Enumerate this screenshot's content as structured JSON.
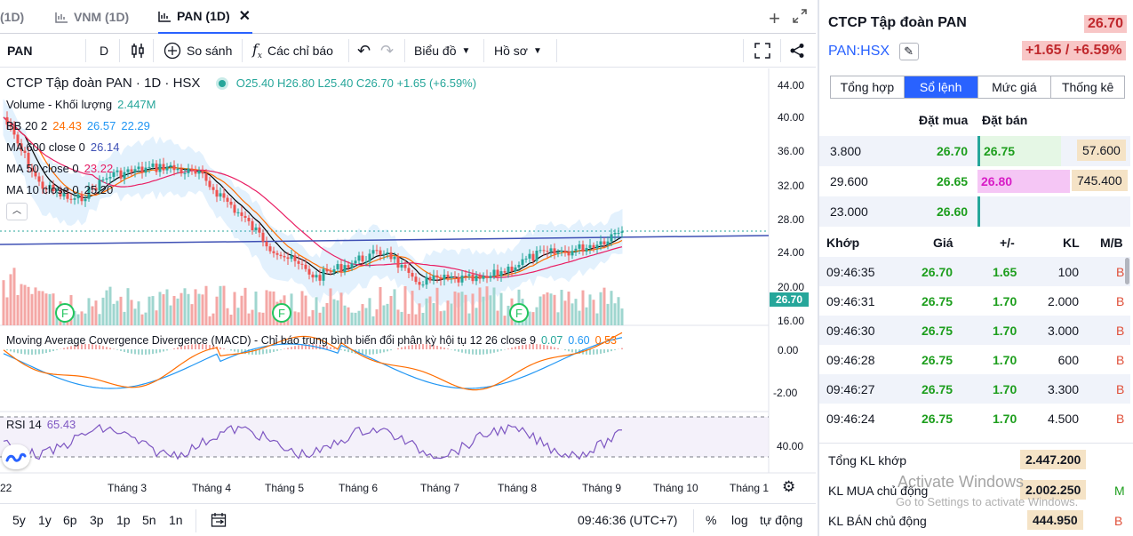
{
  "tabs": [
    {
      "label": "(1D)"
    },
    {
      "label": "VNM (1D)"
    },
    {
      "label": "PAN (1D)"
    }
  ],
  "toolbar": {
    "symbol": "PAN",
    "interval": "D",
    "compare": "So sánh",
    "indicators": "Các chỉ báo",
    "chart_type": "Biểu đồ",
    "profile": "Hồ sơ"
  },
  "legend": {
    "title": "CTCP Tập đoàn PAN · 1D · HSX",
    "ohlc": "O25.40 H26.80 L25.40 C26.70 +1.65 (+6.59%)",
    "volume_label": "Volume - Khối lượng",
    "volume_value": "2.447M",
    "bb_label": "BB 20 2",
    "bb_v1": "24.43",
    "bb_v2": "26.57",
    "bb_v3": "22.29",
    "ma600_label": "MA 600 close 0",
    "ma600_value": "26.14",
    "ma50_label": "MA 50 close 0",
    "ma50_value": "23.22",
    "ma10_label": "MA 10 close 0",
    "ma10_value": "25.20",
    "macd_label": "Moving Average Covergence Divergence (MACD) - Chỉ báo trung bình biến đổi phân kỳ hội tụ 12 26 close 9",
    "macd_v1": "0.07",
    "macd_v2": "0.60",
    "macd_v3": "0.53",
    "rsi_label": "RSI 14",
    "rsi_value": "65.43",
    "event_marker": "F"
  },
  "price_axis": [
    "44.00",
    "40.00",
    "36.00",
    "32.00",
    "28.00",
    "24.00",
    "20.00",
    "16.00"
  ],
  "macd_axis": [
    "0.00",
    "-2.00"
  ],
  "rsi_axis": [
    "40.00"
  ],
  "last_price_tag": "26.70",
  "time_axis": [
    "22",
    "Tháng 3",
    "Tháng 4",
    "Tháng 5",
    "Tháng 6",
    "Tháng 7",
    "Tháng 8",
    "Tháng 9",
    "Tháng 10",
    "Tháng 1"
  ],
  "bottom_bar": {
    "ranges": [
      "5y",
      "1y",
      "6p",
      "3p",
      "1p",
      "5n",
      "1n"
    ],
    "time": "09:46:36 (UTC+7)",
    "percent": "%",
    "log": "log",
    "auto": "tự động"
  },
  "panel": {
    "title": "CTCP Tập đoàn PAN",
    "price": "26.70",
    "symbol": "PAN:HSX",
    "change": "+1.65 / +6.59%",
    "tabs": [
      "Tổng hợp",
      "Sổ lệnh",
      "Mức giá",
      "Thống kê"
    ],
    "orderbook_headers": {
      "bid": "Đặt mua",
      "ask": "Đặt bán"
    },
    "orderbook": [
      {
        "bid_qty": "3.800",
        "bid": "26.70",
        "ask": "26.75",
        "ask_qty": "57.600"
      },
      {
        "bid_qty": "29.600",
        "bid": "26.65",
        "ask": "26.80",
        "ask_qty": "745.400"
      },
      {
        "bid_qty": "23.000",
        "bid": "26.60",
        "ask": "",
        "ask_qty": ""
      }
    ],
    "match_headers": {
      "time": "Khớp",
      "price": "Giá",
      "change": "+/-",
      "volume": "KL",
      "side": "M/B"
    },
    "matches": [
      {
        "time": "09:46:35",
        "price": "26.70",
        "change": "1.65",
        "volume": "100",
        "side": "B"
      },
      {
        "time": "09:46:31",
        "price": "26.75",
        "change": "1.70",
        "volume": "2.000",
        "side": "B"
      },
      {
        "time": "09:46:30",
        "price": "26.75",
        "change": "1.70",
        "volume": "3.000",
        "side": "B"
      },
      {
        "time": "09:46:28",
        "price": "26.75",
        "change": "1.70",
        "volume": "600",
        "side": "B"
      },
      {
        "time": "09:46:27",
        "price": "26.75",
        "change": "1.70",
        "volume": "3.300",
        "side": "B"
      },
      {
        "time": "09:46:24",
        "price": "26.75",
        "change": "1.70",
        "volume": "4.500",
        "side": "B"
      }
    ],
    "summary": [
      {
        "label": "Tổng KL khớp",
        "value": "2.447.200",
        "side": ""
      },
      {
        "label": "KL MUA chủ động",
        "value": "2.002.250",
        "side": "M"
      },
      {
        "label": "KL BÁN chủ động",
        "value": "444.950",
        "side": "B"
      }
    ],
    "watermark_title": "Activate Windows",
    "watermark_sub": "Go to Settings to activate Windows."
  },
  "colors": {
    "up": "#26a69a",
    "down": "#ef5350",
    "accent": "#2962ff",
    "ma10": "#000000",
    "ma50": "#e91e63",
    "ma600": "#3f51b5",
    "bb": "#2196f3",
    "macd_signal": "#ff6d00",
    "rsi": "#7e57c2"
  }
}
